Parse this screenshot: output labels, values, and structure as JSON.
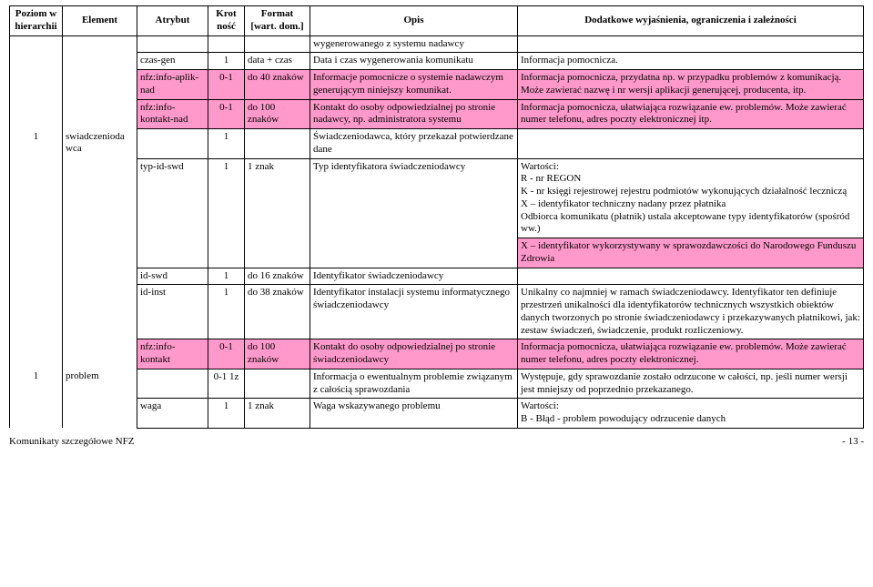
{
  "headers": {
    "h0": "Poziom w hierarchii",
    "h1": "Element",
    "h2": "Atrybut",
    "h3": "Krot ność",
    "h4": "Format [wart. dom.]",
    "h5": "Opis",
    "h6": "Dodatkowe wyjaśnienia, ograniczenia i zależności"
  },
  "rows": {
    "r0": {
      "opis": "wygenerowanego z systemu nadawcy"
    },
    "r1": {
      "atr": "czas-gen",
      "krot": "1",
      "fmt": "data + czas",
      "opis": "Data i czas wygenerowania komunikatu",
      "wyj": "Informacja pomocnicza."
    },
    "r2": {
      "atr": "nfz:info-aplik-nad",
      "krot": "0-1",
      "fmt": "do 40 znaków",
      "opis": "Informacje pomocnicze o systemie nadawczym generującym niniejszy komunikat.",
      "wyj": "Informacja pomocnicza, przydatna np. w przypadku problemów z komunikacją. Może zawierać nazwę i nr wersji aplikacji generującej, producenta, itp."
    },
    "r3": {
      "atr": "nfz:info-kontakt-nad",
      "krot": "0-1",
      "fmt": "do 100 znaków",
      "opis": "Kontakt do osoby odpowiedzialnej po stronie nadawcy, np. administratora systemu",
      "wyj": "Informacja pomocnicza, ułatwiająca rozwiązanie ew. problemów. Może zawierać numer telefonu, adres poczty elektronicznej itp."
    },
    "r4": {
      "poz": "1",
      "el": "swiadczenioda wca",
      "krot": "1",
      "opis": "Świadczeniodawca, który przekazał potwierdzane dane"
    },
    "r5": {
      "atr": "typ-id-swd",
      "krot": "1",
      "fmt": "1 znak",
      "opis": "Typ identyfikatora świadczeniodawcy",
      "wyj": "Wartości:\nR - nr REGON\nK - nr księgi rejestrowej rejestru podmiotów wykonujących działalność leczniczą\nX – identyfikator techniczny nadany przez płatnika\nOdbiorca komunikatu (płatnik) ustala akceptowane typy identyfikatorów (spośród ww.)"
    },
    "r5b": {
      "wyj": "X – identyfikator wykorzystywany w sprawozdawczości do Narodowego Funduszu Zdrowia"
    },
    "r6": {
      "atr": "id-swd",
      "krot": "1",
      "fmt": "do 16 znaków",
      "opis": "Identyfikator świadczeniodawcy"
    },
    "r7": {
      "atr": "id-inst",
      "krot": "1",
      "fmt": "do 38 znaków",
      "opis": "Identyfikator instalacji systemu informatycznego świadczeniodawcy",
      "wyj": "Unikalny co najmniej w ramach świadczeniodawcy. Identyfikator ten definiuje przestrzeń unikalności dla identyfikatorów technicznych wszystkich obiektów danych tworzonych po stronie świadczeniodawcy i przekazywanych płatnikowi, jak: zestaw świadczeń, świadczenie, produkt rozliczeniowy."
    },
    "r8": {
      "atr": "nfz:info-kontakt",
      "krot": "0-1",
      "fmt": "do 100 znaków",
      "opis": "Kontakt do osoby odpowiedzialnej po stronie świadczeniodawcy",
      "wyj": "Informacja pomocnicza, ułatwiająca rozwiązanie ew. problemów. Może zawierać numer telefonu, adres poczty elektronicznej."
    },
    "r9": {
      "poz": "1",
      "el": "problem",
      "krot": "0-1 1z",
      "opis": "Informacja o ewentualnym problemie związanym z całością sprawozdania",
      "wyj": "Występuje, gdy sprawozdanie zostało odrzucone w całości, np. jeśli numer wersji jest mniejszy od poprzednio przekazanego."
    },
    "r10": {
      "atr": "waga",
      "krot": "1",
      "fmt": "1 znak",
      "opis": "Waga wskazywanego problemu",
      "wyj": "Wartości:\nB - Błąd - problem powodujący odrzucenie danych"
    }
  },
  "footer": {
    "left": "Komunikaty szczegółowe NFZ",
    "right": "- 13 -"
  }
}
